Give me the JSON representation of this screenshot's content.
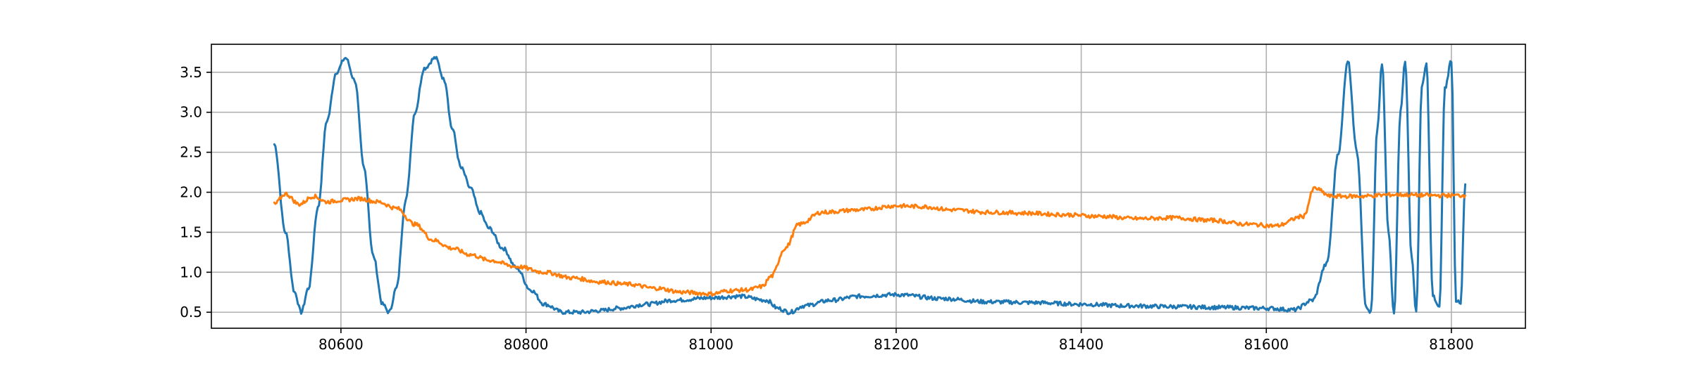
{
  "chart_data": {
    "type": "line",
    "title": "",
    "xlabel": "",
    "ylabel": "",
    "xlim": [
      80460,
      81880
    ],
    "ylim": [
      0.3,
      3.85
    ],
    "grid": true,
    "legend": "none",
    "x_ticks": [
      80600,
      80800,
      81000,
      81200,
      81400,
      81600,
      81800
    ],
    "x_tick_labels": [
      "80600",
      "80800",
      "81000",
      "81200",
      "81400",
      "81600",
      "81800"
    ],
    "y_ticks": [
      0.5,
      1.0,
      1.5,
      2.0,
      2.5,
      3.0,
      3.5
    ],
    "y_tick_labels": [
      "0.5",
      "1.0",
      "1.5",
      "2.0",
      "2.5",
      "3.0",
      "3.5"
    ],
    "series": [
      {
        "color": "#1f77b4",
        "x": [
          80528,
          80540,
          80550,
          80557,
          80565,
          80575,
          80585,
          80595,
          80605,
          80615,
          80625,
          80635,
          80645,
          80652,
          80660,
          80670,
          80680,
          80690,
          80702,
          80712,
          80720,
          80730,
          80740,
          80750,
          80760,
          80775,
          80790,
          80805,
          80820,
          80840,
          80860,
          80880,
          80900,
          80930,
          80960,
          81000,
          81030,
          81060,
          81072,
          81085,
          81100,
          81130,
          81160,
          81200,
          81250,
          81300,
          81350,
          81400,
          81450,
          81500,
          81550,
          81600,
          81630,
          81650,
          81665,
          81678,
          81688,
          81698,
          81708,
          81713,
          81720,
          81725,
          81732,
          81738,
          81745,
          81750,
          81757,
          81762,
          81768,
          81773,
          81780,
          81787,
          81793,
          81800,
          81805,
          81810,
          81815
        ],
        "y": [
          2.6,
          1.5,
          0.75,
          0.5,
          0.8,
          1.8,
          2.9,
          3.5,
          3.68,
          3.4,
          2.3,
          1.2,
          0.6,
          0.5,
          0.8,
          1.9,
          3.0,
          3.55,
          3.68,
          3.4,
          2.8,
          2.3,
          2.05,
          1.75,
          1.55,
          1.3,
          1.05,
          0.78,
          0.6,
          0.5,
          0.5,
          0.52,
          0.55,
          0.6,
          0.65,
          0.68,
          0.7,
          0.65,
          0.55,
          0.5,
          0.58,
          0.65,
          0.7,
          0.72,
          0.67,
          0.63,
          0.62,
          0.6,
          0.58,
          0.57,
          0.56,
          0.55,
          0.53,
          0.65,
          1.1,
          2.5,
          3.65,
          2.5,
          0.55,
          0.5,
          2.8,
          3.6,
          1.5,
          0.5,
          3.0,
          3.65,
          1.2,
          0.5,
          3.3,
          3.6,
          0.7,
          0.55,
          3.3,
          3.65,
          0.65,
          0.6,
          2.1
        ]
      },
      {
        "color": "#ff7f0e",
        "x": [
          80528,
          80540,
          80555,
          80570,
          80585,
          80600,
          80620,
          80640,
          80660,
          80680,
          80700,
          80720,
          80740,
          80760,
          80790,
          80820,
          80850,
          80880,
          80910,
          80940,
          80970,
          81000,
          81020,
          81040,
          81055,
          81065,
          81080,
          81095,
          81120,
          81160,
          81200,
          81230,
          81260,
          81300,
          81340,
          81380,
          81420,
          81460,
          81500,
          81540,
          81580,
          81610,
          81640,
          81652,
          81670,
          81700,
          81740,
          81780,
          81815
        ],
        "y": [
          1.85,
          1.98,
          1.85,
          1.95,
          1.88,
          1.9,
          1.92,
          1.88,
          1.8,
          1.6,
          1.4,
          1.3,
          1.22,
          1.15,
          1.07,
          1.0,
          0.93,
          0.88,
          0.85,
          0.8,
          0.75,
          0.73,
          0.77,
          0.78,
          0.82,
          0.95,
          1.3,
          1.6,
          1.75,
          1.78,
          1.83,
          1.82,
          1.78,
          1.75,
          1.74,
          1.72,
          1.7,
          1.67,
          1.68,
          1.65,
          1.6,
          1.58,
          1.7,
          2.05,
          1.95,
          1.95,
          1.97,
          1.96,
          1.96
        ]
      }
    ]
  }
}
